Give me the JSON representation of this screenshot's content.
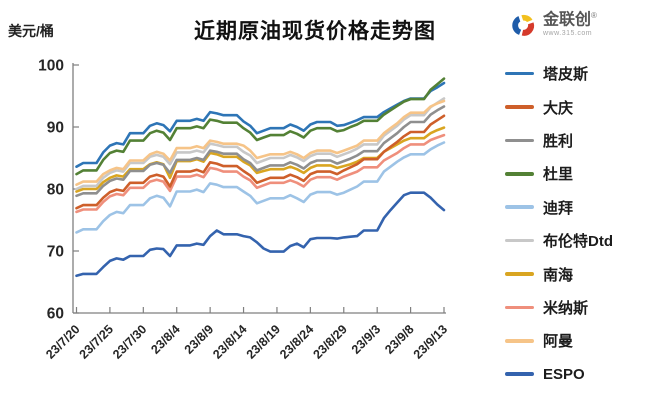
{
  "header": {
    "title": "近期原油现货价格走势图",
    "y_axis_unit": "美元/桶"
  },
  "logo": {
    "brand": "金联创",
    "registered_mark": "®",
    "subtext": "www.315.com",
    "icon_colors": {
      "blue": "#1F5CA9",
      "yellow": "#F2C01E",
      "red": "#D53A2B"
    }
  },
  "chart_data": {
    "type": "line",
    "title": "近期原油现货价格走势图",
    "ylabel": "美元/桶",
    "xlabel": "",
    "ylim": [
      60,
      100
    ],
    "y_ticks": [
      60,
      70,
      80,
      90,
      100
    ],
    "grid": false,
    "legend_position": "right",
    "axis_color": "#7f7f7f",
    "tick_label_color": "#262626",
    "x_tick_interval": 5,
    "x_tick_labels": [
      "23/7/20",
      "23/7/25",
      "23/7/30",
      "23/8/4",
      "23/8/9",
      "23/8/14",
      "23/8/19",
      "23/8/24",
      "23/8/29",
      "23/9/3",
      "23/9/8",
      "23/9/13"
    ],
    "dates": [
      "23/7/20",
      "23/7/21",
      "23/7/22",
      "23/7/23",
      "23/7/24",
      "23/7/25",
      "23/7/26",
      "23/7/27",
      "23/7/28",
      "23/7/29",
      "23/7/30",
      "23/7/31",
      "23/8/1",
      "23/8/2",
      "23/8/3",
      "23/8/4",
      "23/8/5",
      "23/8/6",
      "23/8/7",
      "23/8/8",
      "23/8/9",
      "23/8/10",
      "23/8/11",
      "23/8/12",
      "23/8/13",
      "23/8/14",
      "23/8/15",
      "23/8/16",
      "23/8/17",
      "23/8/18",
      "23/8/19",
      "23/8/20",
      "23/8/21",
      "23/8/22",
      "23/8/23",
      "23/8/24",
      "23/8/25",
      "23/8/26",
      "23/8/27",
      "23/8/28",
      "23/8/29",
      "23/8/30",
      "23/8/31",
      "23/9/1",
      "23/9/2",
      "23/9/3",
      "23/9/4",
      "23/9/5",
      "23/9/6",
      "23/9/7",
      "23/9/8",
      "23/9/9",
      "23/9/10",
      "23/9/11",
      "23/9/12",
      "23/9/13"
    ],
    "series": [
      {
        "id": "tapis",
        "name": "塔皮斯",
        "color": "#2E75B6",
        "values": [
          83.6,
          84.2,
          84.2,
          84.2,
          85.9,
          87.0,
          87.4,
          87.2,
          89.0,
          89.0,
          89.0,
          90.2,
          90.6,
          90.3,
          89.3,
          91.0,
          91.0,
          91.0,
          91.3,
          91.0,
          92.4,
          92.2,
          91.9,
          91.9,
          91.9,
          90.9,
          90.2,
          89.0,
          89.4,
          89.8,
          89.8,
          89.8,
          90.4,
          90.0,
          89.4,
          90.4,
          90.8,
          90.8,
          90.8,
          90.2,
          90.3,
          90.7,
          91.1,
          91.6,
          91.6,
          91.6,
          92.4,
          93.0,
          93.6,
          94.2,
          94.6,
          94.6,
          94.6,
          95.8,
          96.4,
          97.1
        ]
      },
      {
        "id": "daqing",
        "name": "大庆",
        "color": "#CE5F2A",
        "values": [
          76.9,
          77.4,
          77.4,
          77.4,
          78.6,
          79.5,
          79.9,
          79.7,
          81.0,
          81.0,
          81.0,
          82.0,
          82.3,
          82.0,
          80.4,
          82.8,
          82.8,
          82.8,
          83.1,
          82.7,
          84.3,
          84.1,
          83.7,
          83.7,
          83.7,
          82.9,
          82.2,
          81.0,
          81.4,
          81.8,
          81.8,
          81.8,
          82.3,
          81.9,
          81.3,
          82.4,
          82.8,
          82.8,
          82.8,
          82.4,
          83.0,
          83.5,
          84.0,
          84.8,
          84.8,
          84.8,
          86.0,
          86.8,
          87.6,
          88.5,
          89.2,
          89.2,
          89.2,
          90.4,
          91.1,
          91.8
        ]
      },
      {
        "id": "shengli",
        "name": "胜利",
        "color": "#8F8F8F",
        "values": [
          78.9,
          79.3,
          79.3,
          79.3,
          80.5,
          81.3,
          81.7,
          81.5,
          82.9,
          82.9,
          82.9,
          83.9,
          84.2,
          83.9,
          82.6,
          84.7,
          84.7,
          84.7,
          85.0,
          84.7,
          86.2,
          86.0,
          85.7,
          85.7,
          85.7,
          84.8,
          84.2,
          83.0,
          83.4,
          83.8,
          83.8,
          83.8,
          84.3,
          83.9,
          83.3,
          84.2,
          84.6,
          84.6,
          84.6,
          84.1,
          84.5,
          84.9,
          85.4,
          86.1,
          86.1,
          86.1,
          87.4,
          88.2,
          89.0,
          90.0,
          90.8,
          90.8,
          90.8,
          92.0,
          92.7,
          93.3
        ]
      },
      {
        "id": "duri",
        "name": "杜里",
        "color": "#538135",
        "values": [
          82.4,
          83.0,
          83.0,
          83.0,
          84.7,
          85.8,
          86.2,
          86.0,
          87.8,
          87.8,
          87.8,
          89.0,
          89.4,
          89.1,
          87.9,
          89.8,
          89.8,
          89.8,
          90.1,
          89.8,
          91.2,
          91.0,
          90.7,
          90.7,
          90.7,
          89.8,
          89.1,
          87.9,
          88.3,
          88.7,
          88.7,
          88.7,
          89.3,
          88.9,
          88.3,
          89.4,
          89.8,
          89.8,
          89.8,
          89.3,
          89.5,
          90.0,
          90.4,
          91.0,
          91.0,
          91.0,
          92.0,
          92.7,
          93.4,
          94.1,
          94.5,
          94.5,
          94.5,
          96.0,
          96.9,
          97.8
        ]
      },
      {
        "id": "dubai",
        "name": "迪拜",
        "color": "#9DC3E6",
        "values": [
          73.0,
          73.5,
          73.5,
          73.5,
          74.8,
          75.8,
          76.3,
          76.1,
          77.4,
          77.4,
          77.4,
          78.5,
          78.9,
          78.6,
          77.2,
          79.6,
          79.6,
          79.6,
          79.9,
          79.5,
          80.9,
          80.7,
          80.3,
          80.3,
          80.3,
          79.6,
          78.9,
          77.7,
          78.1,
          78.5,
          78.5,
          78.5,
          79.0,
          78.5,
          77.9,
          79.1,
          79.5,
          79.5,
          79.5,
          79.1,
          79.4,
          79.9,
          80.4,
          81.2,
          81.2,
          81.2,
          82.8,
          83.6,
          84.4,
          85.1,
          85.6,
          85.6,
          85.6,
          86.4,
          87.0,
          87.5
        ]
      },
      {
        "id": "brent-dtd",
        "name": "布伦特Dtd",
        "color": "#C8C8C8",
        "values": [
          80.0,
          80.5,
          80.5,
          80.5,
          81.8,
          82.6,
          83.0,
          82.8,
          84.2,
          84.2,
          84.2,
          85.2,
          85.5,
          85.2,
          84.0,
          85.9,
          85.9,
          85.9,
          86.2,
          85.9,
          87.3,
          87.1,
          86.8,
          86.8,
          86.8,
          86.0,
          85.4,
          84.2,
          84.6,
          85.0,
          85.0,
          85.0,
          85.5,
          85.1,
          84.5,
          85.3,
          85.7,
          85.7,
          85.7,
          85.2,
          85.6,
          86.0,
          86.5,
          87.2,
          87.2,
          87.2,
          88.6,
          89.4,
          90.2,
          91.2,
          91.9,
          91.9,
          91.9,
          93.2,
          93.9,
          94.6
        ]
      },
      {
        "id": "nanhai",
        "name": "南海",
        "color": "#D9A521",
        "values": [
          79.6,
          80.0,
          80.0,
          80.0,
          81.1,
          81.8,
          82.2,
          82.0,
          83.2,
          83.2,
          83.2,
          84.0,
          84.3,
          84.0,
          81.8,
          84.5,
          84.5,
          84.5,
          84.8,
          84.4,
          85.8,
          85.6,
          85.2,
          85.2,
          85.2,
          84.4,
          83.8,
          82.6,
          82.9,
          83.2,
          83.2,
          83.2,
          83.6,
          83.2,
          82.6,
          83.4,
          83.8,
          83.8,
          83.8,
          83.4,
          83.7,
          84.0,
          84.4,
          85.0,
          85.0,
          85.0,
          86.0,
          86.6,
          87.2,
          87.8,
          88.2,
          88.2,
          88.2,
          89.0,
          89.5,
          89.9
        ]
      },
      {
        "id": "minas",
        "name": "米纳斯",
        "color": "#EF8F7C",
        "values": [
          76.3,
          76.7,
          76.7,
          76.7,
          77.9,
          78.8,
          79.2,
          79.0,
          80.2,
          80.2,
          80.2,
          81.2,
          81.5,
          81.2,
          79.7,
          82.0,
          82.0,
          82.0,
          82.3,
          81.9,
          83.4,
          83.2,
          82.8,
          82.8,
          82.8,
          82.0,
          81.4,
          80.2,
          80.6,
          81.0,
          81.0,
          81.0,
          81.4,
          81.0,
          80.4,
          81.5,
          81.9,
          81.9,
          81.9,
          81.5,
          82.0,
          82.4,
          82.8,
          83.5,
          83.5,
          83.5,
          84.6,
          85.2,
          85.8,
          86.6,
          87.2,
          87.2,
          87.2,
          87.9,
          88.3,
          88.7
        ]
      },
      {
        "id": "oman",
        "name": "阿曼",
        "color": "#F6C488",
        "values": [
          80.7,
          81.2,
          81.2,
          81.2,
          82.4,
          83.0,
          83.4,
          83.2,
          84.6,
          84.6,
          84.6,
          85.6,
          86.0,
          85.7,
          84.6,
          86.6,
          86.6,
          86.6,
          86.9,
          86.6,
          87.8,
          87.6,
          87.3,
          87.3,
          87.3,
          87.0,
          86.2,
          85.0,
          85.3,
          85.6,
          85.6,
          85.6,
          86.0,
          85.6,
          85.0,
          85.8,
          86.2,
          86.2,
          86.2,
          85.8,
          86.2,
          86.6,
          87.0,
          87.8,
          87.8,
          87.8,
          89.0,
          89.8,
          90.6,
          91.6,
          92.3,
          92.3,
          92.3,
          93.3,
          93.8,
          94.2
        ]
      },
      {
        "id": "espo",
        "name": "ESPO",
        "color": "#3463AE",
        "values": [
          66.0,
          66.3,
          66.3,
          66.3,
          67.4,
          68.4,
          68.8,
          68.6,
          69.2,
          69.2,
          69.2,
          70.2,
          70.4,
          70.3,
          69.2,
          70.9,
          70.9,
          70.9,
          71.2,
          71.0,
          72.4,
          73.3,
          72.7,
          72.7,
          72.7,
          72.4,
          72.2,
          71.4,
          70.4,
          69.9,
          69.9,
          69.9,
          70.8,
          71.2,
          70.6,
          71.9,
          72.1,
          72.1,
          72.1,
          72.0,
          72.2,
          72.3,
          72.4,
          73.3,
          73.3,
          73.3,
          75.3,
          76.6,
          77.8,
          79.0,
          79.4,
          79.4,
          79.4,
          78.6,
          77.5,
          76.6
        ]
      }
    ]
  }
}
